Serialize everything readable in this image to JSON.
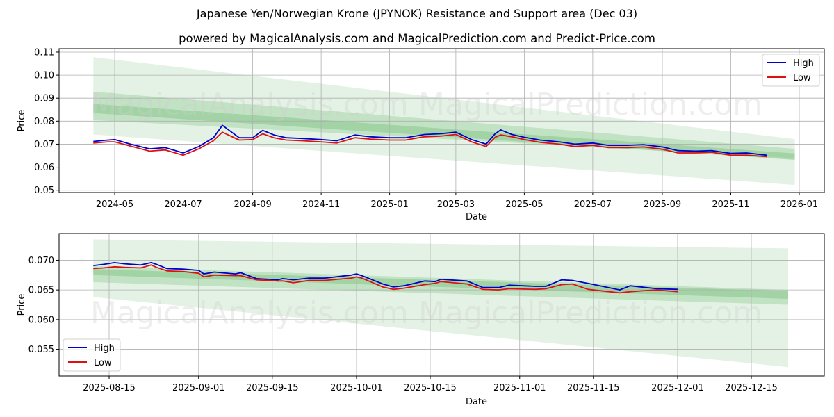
{
  "header": {
    "title": "Japanese Yen/Norwegian Krone (JPYNOK) Resistance and Support area (Dec 03)",
    "subtitle": "powered by MagicalAnalysis.com and MagicalPrediction.com and Predict-Price.com"
  },
  "watermarks": [
    "MagicalAnalysis.com",
    "MagicalPrediction.com"
  ],
  "colors": {
    "high": "#0000cc",
    "low": "#dd1111",
    "band_light": "#c8e6c9",
    "band_mid": "#a5d6a7",
    "band_dark": "#8cc98f"
  },
  "chart_data": [
    {
      "type": "line",
      "title": "",
      "xlabel": "Date",
      "ylabel": "Price",
      "ylim": [
        0.05,
        0.11
      ],
      "yticks": [
        "0.05",
        "0.06",
        "0.07",
        "0.08",
        "0.09",
        "0.10",
        "0.11"
      ],
      "xticks": [
        "2024-05",
        "2024-07",
        "2024-09",
        "2024-11",
        "2025-01",
        "2025-03",
        "2025-05",
        "2025-07",
        "2025-09",
        "2025-11",
        "2026-01"
      ],
      "grid": true,
      "legend": {
        "position": "upper right",
        "entries": [
          "High",
          "Low"
        ]
      },
      "x": [
        "2024-04-12",
        "2024-04-25",
        "2024-05-01",
        "2024-05-15",
        "2024-06-01",
        "2024-06-15",
        "2024-07-01",
        "2024-07-15",
        "2024-07-28",
        "2024-08-05",
        "2024-08-20",
        "2024-09-01",
        "2024-09-10",
        "2024-09-20",
        "2024-10-01",
        "2024-10-15",
        "2024-11-01",
        "2024-11-15",
        "2024-12-01",
        "2024-12-15",
        "2025-01-01",
        "2025-01-15",
        "2025-02-01",
        "2025-02-15",
        "2025-03-01",
        "2025-03-15",
        "2025-03-28",
        "2025-04-05",
        "2025-04-10",
        "2025-04-20",
        "2025-05-01",
        "2025-05-15",
        "2025-06-01",
        "2025-06-15",
        "2025-07-01",
        "2025-07-15",
        "2025-08-01",
        "2025-08-15",
        "2025-09-01",
        "2025-09-15",
        "2025-10-01",
        "2025-10-15",
        "2025-11-01",
        "2025-11-15",
        "2025-12-03"
      ],
      "series": [
        {
          "name": "High",
          "values": [
            0.0712,
            0.0718,
            0.072,
            0.07,
            0.068,
            0.0685,
            0.0662,
            0.069,
            0.0728,
            0.0782,
            0.0728,
            0.0728,
            0.076,
            0.074,
            0.0728,
            0.0725,
            0.072,
            0.0715,
            0.074,
            0.0732,
            0.0728,
            0.0728,
            0.0742,
            0.0745,
            0.0752,
            0.072,
            0.07,
            0.0745,
            0.0762,
            0.0742,
            0.073,
            0.0718,
            0.071,
            0.07,
            0.0705,
            0.0695,
            0.0695,
            0.0698,
            0.0688,
            0.0672,
            0.067,
            0.0672,
            0.066,
            0.0662,
            0.0652
          ]
        },
        {
          "name": "Low",
          "values": [
            0.0705,
            0.071,
            0.071,
            0.0692,
            0.067,
            0.0675,
            0.0652,
            0.068,
            0.0715,
            0.0752,
            0.0718,
            0.072,
            0.0745,
            0.0728,
            0.0718,
            0.0715,
            0.071,
            0.0705,
            0.0728,
            0.0722,
            0.0718,
            0.0718,
            0.0732,
            0.0735,
            0.0742,
            0.071,
            0.069,
            0.073,
            0.074,
            0.0732,
            0.072,
            0.0708,
            0.07,
            0.069,
            0.0695,
            0.0685,
            0.0685,
            0.0688,
            0.0678,
            0.0662,
            0.0662,
            0.0665,
            0.0652,
            0.0652,
            0.0646
          ]
        }
      ],
      "bands": [
        {
          "name": "outer",
          "start": [
            0.1078,
            0.0742
          ],
          "end": [
            0.0722,
            0.0523
          ]
        },
        {
          "name": "middle-upper",
          "start": [
            0.0928,
            0.0805
          ],
          "end": [
            0.068,
            0.064
          ]
        },
        {
          "name": "core",
          "start": [
            0.0875,
            0.0835
          ],
          "end": [
            0.066,
            0.0632
          ]
        }
      ]
    },
    {
      "type": "line",
      "title": "",
      "xlabel": "Date",
      "ylabel": "Price",
      "ylim": [
        0.0505,
        0.0745
      ],
      "yticks": [
        "0.055",
        "0.060",
        "0.065",
        "0.070"
      ],
      "xticks": [
        "2025-08-15",
        "2025-09-01",
        "2025-09-15",
        "2025-10-01",
        "2025-10-15",
        "2025-11-01",
        "2025-11-15",
        "2025-12-01",
        "2025-12-15"
      ],
      "grid": true,
      "legend": {
        "position": "lower left",
        "entries": [
          "High",
          "Low"
        ]
      },
      "x": [
        "2025-08-12",
        "2025-08-14",
        "2025-08-16",
        "2025-08-18",
        "2025-08-21",
        "2025-08-23",
        "2025-08-24",
        "2025-08-26",
        "2025-08-29",
        "2025-09-01",
        "2025-09-02",
        "2025-09-04",
        "2025-09-08",
        "2025-09-09",
        "2025-09-12",
        "2025-09-16",
        "2025-09-17",
        "2025-09-19",
        "2025-09-22",
        "2025-09-25",
        "2025-09-30",
        "2025-10-01",
        "2025-10-02",
        "2025-10-06",
        "2025-10-08",
        "2025-10-10",
        "2025-10-14",
        "2025-10-16",
        "2025-10-17",
        "2025-10-22",
        "2025-10-25",
        "2025-10-28",
        "2025-10-30",
        "2025-11-04",
        "2025-11-06",
        "2025-11-09",
        "2025-11-11",
        "2025-11-14",
        "2025-11-20",
        "2025-11-22",
        "2025-11-25",
        "2025-11-27",
        "2025-12-01"
      ],
      "series": [
        {
          "name": "High",
          "values": [
            0.0691,
            0.0693,
            0.0696,
            0.0694,
            0.0692,
            0.0696,
            0.0693,
            0.0686,
            0.0685,
            0.0683,
            0.0677,
            0.068,
            0.0677,
            0.0679,
            0.0669,
            0.0667,
            0.0669,
            0.0667,
            0.067,
            0.067,
            0.0675,
            0.0677,
            0.0674,
            0.066,
            0.0655,
            0.0657,
            0.0665,
            0.0664,
            0.0668,
            0.0665,
            0.0654,
            0.0654,
            0.0658,
            0.0656,
            0.0656,
            0.0667,
            0.0666,
            0.0661,
            0.065,
            0.0657,
            0.0654,
            0.0652,
            0.0651
          ]
        },
        {
          "name": "Low",
          "values": [
            0.0686,
            0.0687,
            0.0689,
            0.0688,
            0.0687,
            0.0692,
            0.0688,
            0.0682,
            0.0681,
            0.0678,
            0.0672,
            0.0675,
            0.0674,
            0.0674,
            0.0667,
            0.0665,
            0.0665,
            0.0662,
            0.0666,
            0.0666,
            0.067,
            0.0672,
            0.067,
            0.0655,
            0.0651,
            0.0653,
            0.0659,
            0.0661,
            0.0664,
            0.066,
            0.0651,
            0.065,
            0.0652,
            0.0651,
            0.0652,
            0.0659,
            0.066,
            0.0651,
            0.0645,
            0.0647,
            0.0649,
            0.065,
            0.0647
          ]
        }
      ],
      "bands": [
        {
          "name": "outer",
          "start": [
            0.0735,
            0.0638
          ],
          "end": [
            0.072,
            0.052
          ]
        },
        {
          "name": "middle",
          "start": [
            0.069,
            0.0663
          ],
          "end": [
            0.065,
            0.0625
          ]
        },
        {
          "name": "core",
          "start": [
            0.0685,
            0.0675
          ],
          "end": [
            0.0648,
            0.0635
          ]
        }
      ]
    }
  ],
  "legend": {
    "high_label": "High",
    "low_label": "Low"
  },
  "axes": {
    "x_label": "Date",
    "y_label": "Price"
  }
}
